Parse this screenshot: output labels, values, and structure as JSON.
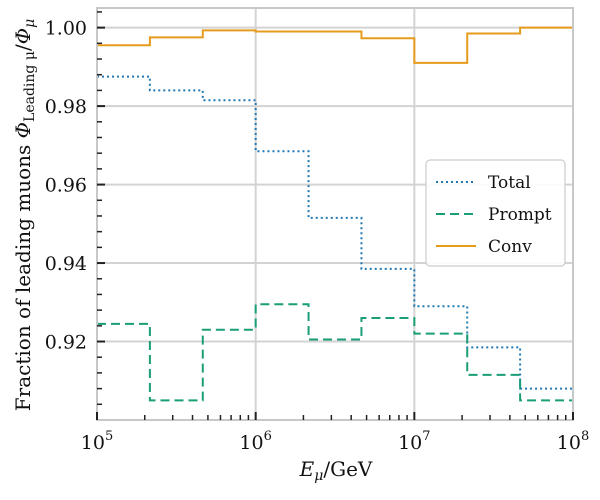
{
  "chart_data": {
    "type": "line",
    "step": true,
    "x_scale": "log",
    "xlim": [
      100000,
      100000000
    ],
    "ylim": [
      0.9,
      1.005
    ],
    "xlabel_main": "E",
    "xlabel_sub": "μ",
    "xlabel_rest": "/GeV",
    "ylabel_text": "Fraction of leading muons ",
    "ylabel_phi": "Φ",
    "ylabel_sub1": "Leading μ",
    "ylabel_slash": "/",
    "ylabel_sub2": "μ",
    "x_ticks": [
      {
        "value": 100000,
        "base": "10",
        "exp": "5"
      },
      {
        "value": 1000000,
        "base": "10",
        "exp": "6"
      },
      {
        "value": 10000000,
        "base": "10",
        "exp": "7"
      },
      {
        "value": 100000000,
        "base": "10",
        "exp": "8"
      }
    ],
    "y_ticks": [
      {
        "value": 0.92,
        "label": "0.92"
      },
      {
        "value": 0.94,
        "label": "0.94"
      },
      {
        "value": 0.96,
        "label": "0.96"
      },
      {
        "value": 0.98,
        "label": "0.98"
      },
      {
        "value": 1.0,
        "label": "1.00"
      }
    ],
    "bin_edges": [
      100000,
      215443,
      464159,
      1000000,
      2154435,
      4641589,
      10000000,
      21544347,
      46415888,
      100000000
    ],
    "grid": true,
    "legend_position": "center-right",
    "series": [
      {
        "name": "Total",
        "color": "#1f78b4",
        "style": "dotted",
        "values": [
          0.9875,
          0.984,
          0.9815,
          0.9685,
          0.9515,
          0.9385,
          0.929,
          0.9185,
          0.908
        ]
      },
      {
        "name": "Prompt",
        "color": "#1a9e77",
        "style": "dashed",
        "values": [
          0.9245,
          0.905,
          0.923,
          0.9295,
          0.9205,
          0.926,
          0.922,
          0.9115,
          0.905
        ]
      },
      {
        "name": "Conv",
        "color": "#e69b1c",
        "style": "solid",
        "values": [
          0.9955,
          0.9975,
          0.9993,
          0.999,
          0.999,
          0.9973,
          0.991,
          0.9985,
          1.0
        ]
      }
    ]
  }
}
